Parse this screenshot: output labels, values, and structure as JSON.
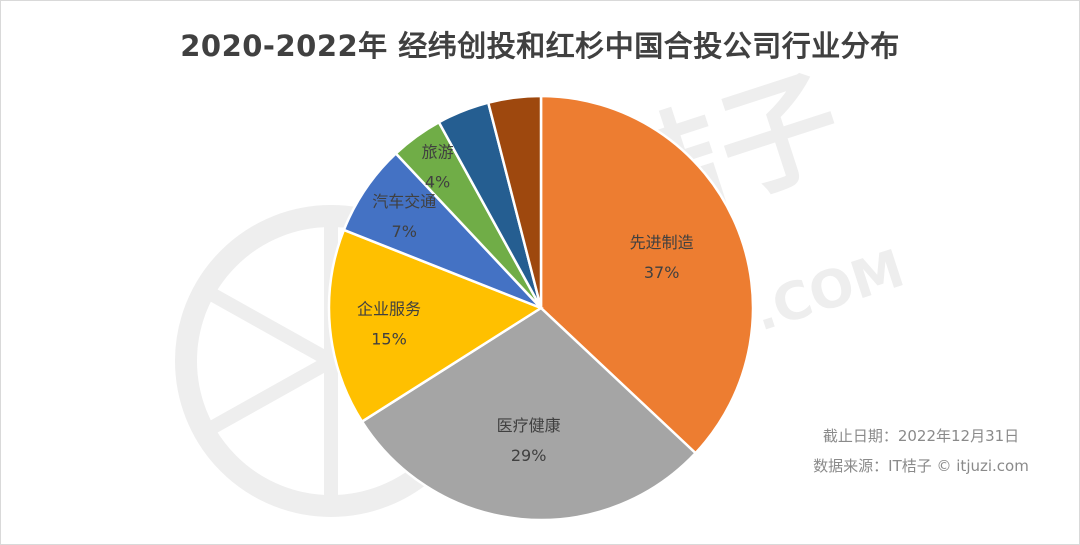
{
  "title": "2020-2022年 经纬创投和红杉中国合投公司行业分布",
  "watermark": {
    "text_cn": "桔子",
    "text_en": ".COM"
  },
  "footnote": {
    "cutoff": "截止日期：2022年12月31日",
    "source": "数据来源：IT桔子 © itjuzi.com"
  },
  "chart_data": {
    "type": "pie",
    "title": "2020-2022年 经纬创投和红杉中国合投公司行业分布",
    "start_angle": "12 o'clock, clockwise",
    "legend": "none (data labels on slices)",
    "slices": [
      {
        "label": "先进制造",
        "value": 37,
        "value_label": "37%",
        "color": "#ED7D31"
      },
      {
        "label": "医疗健康",
        "value": 29,
        "value_label": "29%",
        "color": "#A5A5A5"
      },
      {
        "label": "企业服务",
        "value": 15,
        "value_label": "15%",
        "color": "#FFC000"
      },
      {
        "label": "汽车交通",
        "value": 7,
        "value_label": "7%",
        "color": "#4472C4"
      },
      {
        "label": "旅游",
        "value": 4,
        "value_label": "4%",
        "color": "#70AD47"
      },
      {
        "label": "",
        "value": 4,
        "value_label": "",
        "color": "#255E91"
      },
      {
        "label": "",
        "value": 4,
        "value_label": "",
        "color": "#9E480E"
      }
    ]
  }
}
